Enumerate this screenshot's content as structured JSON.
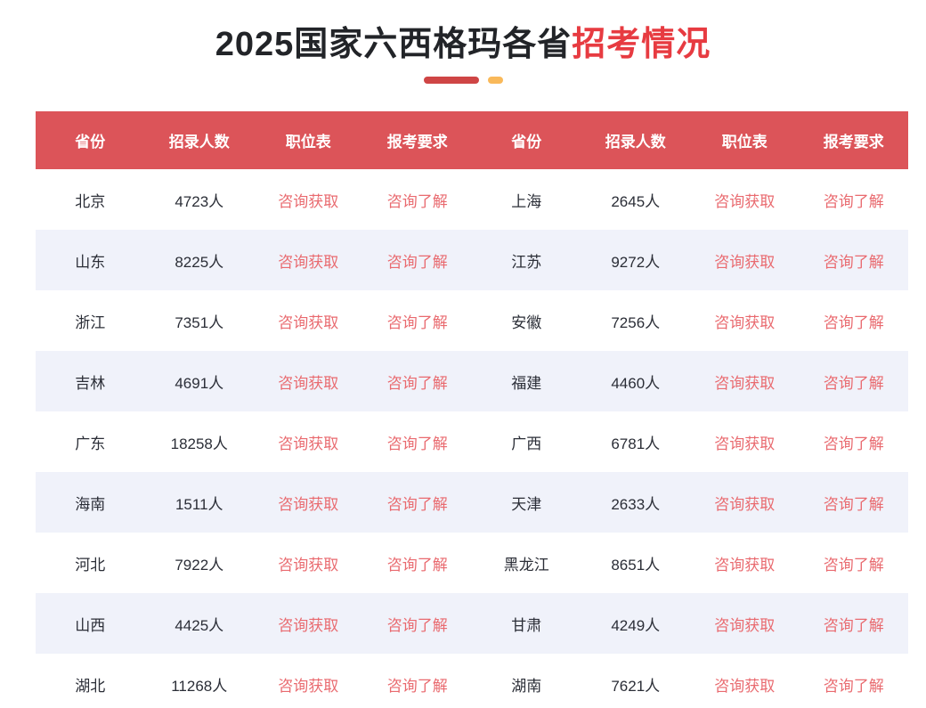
{
  "title": {
    "black": "2025国家六西格玛各省",
    "red": "招考情况"
  },
  "colors": {
    "header_bg": "#dc5459",
    "stripe": "#f0f2fa",
    "title_red": "#e73b41",
    "divider_red": "#cf4545",
    "divider_orange": "#f9b95a",
    "link_red": "#e96a6f",
    "text_dark": "#2b2e37",
    "text_title": "#222428"
  },
  "table": {
    "headers": [
      "省份",
      "招录人数",
      "职位表",
      "报考要求",
      "省份",
      "招录人数",
      "职位表",
      "报考要求"
    ],
    "rows": [
      [
        "北京",
        "4723人",
        "咨询获取",
        "咨询了解",
        "上海",
        "2645人",
        "咨询获取",
        "咨询了解"
      ],
      [
        "山东",
        "8225人",
        "咨询获取",
        "咨询了解",
        "江苏",
        "9272人",
        "咨询获取",
        "咨询了解"
      ],
      [
        "浙江",
        "7351人",
        "咨询获取",
        "咨询了解",
        "安徽",
        "7256人",
        "咨询获取",
        "咨询了解"
      ],
      [
        "吉林",
        "4691人",
        "咨询获取",
        "咨询了解",
        "福建",
        "4460人",
        "咨询获取",
        "咨询了解"
      ],
      [
        "广东",
        "18258人",
        "咨询获取",
        "咨询了解",
        "广西",
        "6781人",
        "咨询获取",
        "咨询了解"
      ],
      [
        "海南",
        "1511人",
        "咨询获取",
        "咨询了解",
        "天津",
        "2633人",
        "咨询获取",
        "咨询了解"
      ],
      [
        "河北",
        "7922人",
        "咨询获取",
        "咨询了解",
        "黑龙江",
        "8651人",
        "咨询获取",
        "咨询了解"
      ],
      [
        "山西",
        "4425人",
        "咨询获取",
        "咨询了解",
        "甘肃",
        "4249人",
        "咨询获取",
        "咨询了解"
      ],
      [
        "湖北",
        "11268人",
        "咨询获取",
        "咨询了解",
        "湖南",
        "7621人",
        "咨询获取",
        "咨询了解"
      ]
    ]
  },
  "chart_data": {
    "type": "table",
    "title": "2025国家六西格玛各省招考情况",
    "columns": [
      "省份",
      "招录人数",
      "职位表",
      "报考要求"
    ],
    "records": [
      {
        "province": "北京",
        "recruits": 4723
      },
      {
        "province": "上海",
        "recruits": 2645
      },
      {
        "province": "山东",
        "recruits": 8225
      },
      {
        "province": "江苏",
        "recruits": 9272
      },
      {
        "province": "浙江",
        "recruits": 7351
      },
      {
        "province": "安徽",
        "recruits": 7256
      },
      {
        "province": "吉林",
        "recruits": 4691
      },
      {
        "province": "福建",
        "recruits": 4460
      },
      {
        "province": "广东",
        "recruits": 18258
      },
      {
        "province": "广西",
        "recruits": 6781
      },
      {
        "province": "海南",
        "recruits": 1511
      },
      {
        "province": "天津",
        "recruits": 2633
      },
      {
        "province": "河北",
        "recruits": 7922
      },
      {
        "province": "黑龙江",
        "recruits": 8651
      },
      {
        "province": "山西",
        "recruits": 4425
      },
      {
        "province": "甘肃",
        "recruits": 4249
      },
      {
        "province": "湖北",
        "recruits": 11268
      },
      {
        "province": "湖南",
        "recruits": 7621
      }
    ],
    "position_link_label": "咨询获取",
    "requirement_link_label": "咨询了解"
  }
}
